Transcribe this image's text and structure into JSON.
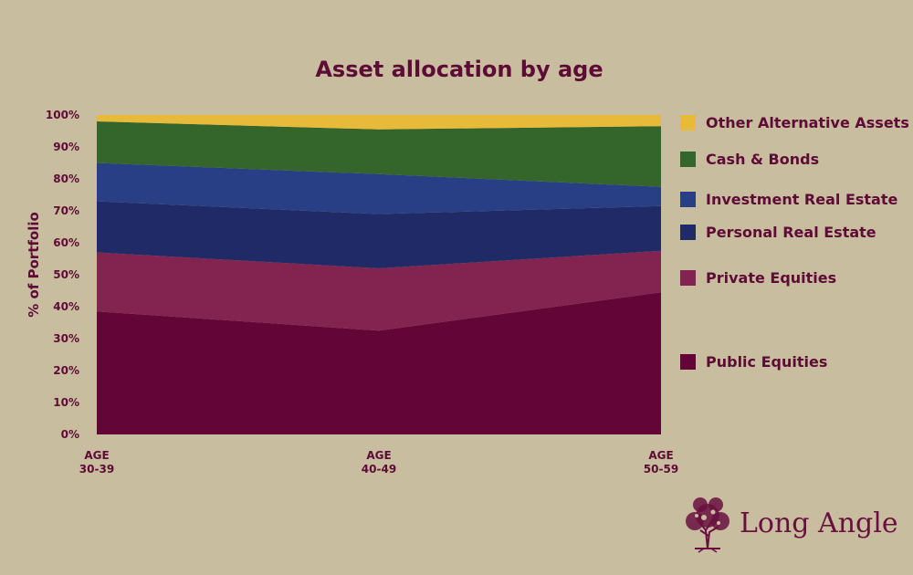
{
  "chart_data": {
    "type": "area",
    "title": "Asset allocation by age",
    "ylabel": "% of Portfolio",
    "xlabel": "",
    "categories": [
      [
        "AGE",
        "30-39"
      ],
      [
        "AGE",
        "40-49"
      ],
      [
        "AGE",
        "50-59"
      ]
    ],
    "ylim": [
      0,
      100
    ],
    "yticks": [
      "0%",
      "10%",
      "20%",
      "30%",
      "40%",
      "50%",
      "60%",
      "70%",
      "80%",
      "90%",
      "100%"
    ],
    "stacked": true,
    "legend": "right",
    "grid": false,
    "series": [
      {
        "name": "Public Equities",
        "color": "#640537",
        "values": [
          38.5,
          32.5,
          44.5
        ]
      },
      {
        "name": "Private Equities",
        "color": "#82244f",
        "values": [
          18.5,
          19.5,
          13
        ]
      },
      {
        "name": "Personal Real Estate",
        "color": "#202a66",
        "values": [
          16,
          17,
          14
        ]
      },
      {
        "name": "Investment Real Estate",
        "color": "#283f85",
        "values": [
          12,
          12.5,
          6
        ]
      },
      {
        "name": "Cash & Bonds",
        "color": "#34652b",
        "values": [
          13,
          14,
          19
        ]
      },
      {
        "name": "Other Alternative Assets",
        "color": "#e7ba3a",
        "values": [
          2,
          4.5,
          3.5
        ]
      }
    ]
  },
  "brand": {
    "name": "Long Angle",
    "logo_icon": "tree-icon",
    "color": "#6a1040"
  }
}
